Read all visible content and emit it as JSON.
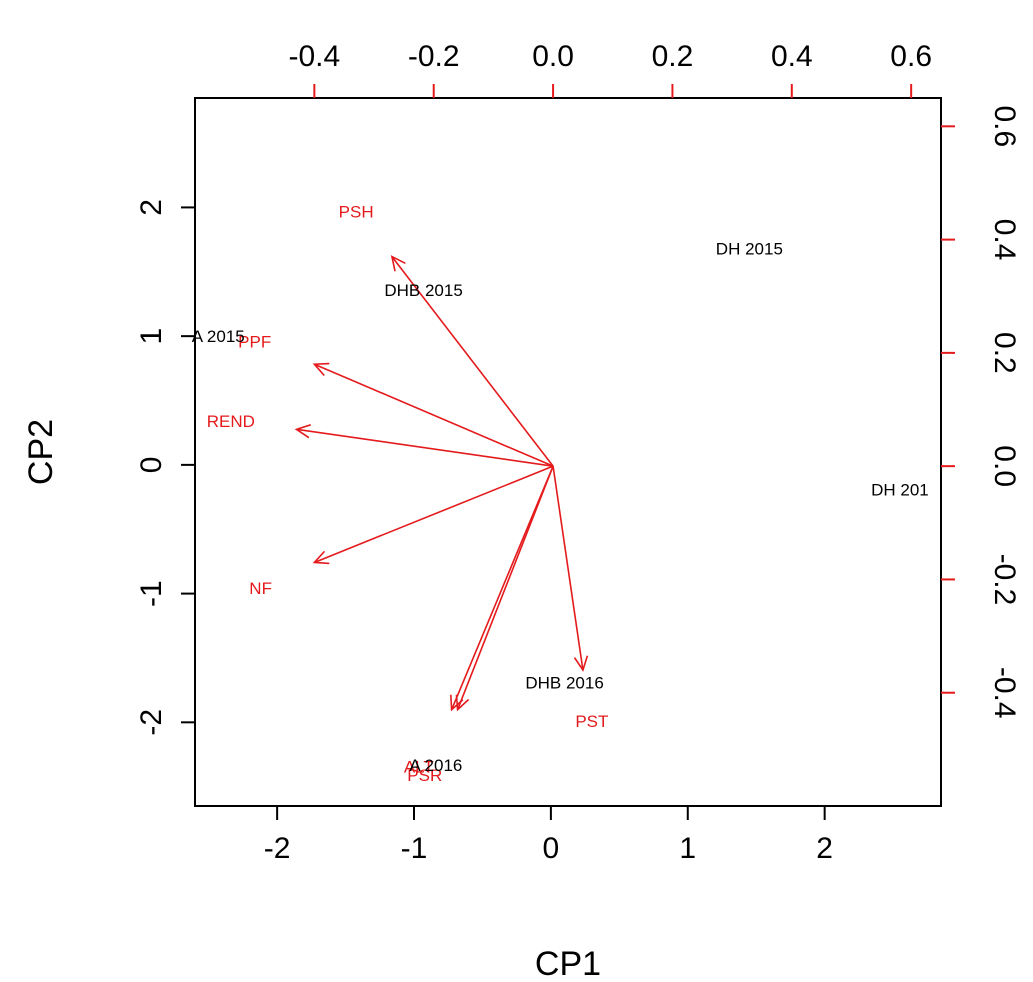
{
  "chart_data": {
    "type": "scatter",
    "xlabel": "CP1",
    "ylabel": "CP2",
    "xlim": [
      -2.6,
      2.85
    ],
    "ylim": [
      -2.65,
      2.85
    ],
    "top_xlim": [
      -0.6,
      0.65
    ],
    "right_ylim": [
      -0.6,
      0.65
    ],
    "primary_axis_color": "#000000",
    "secondary_axis_color": "#e41a1c",
    "bottom_ticks": [
      {
        "value": -2,
        "label": "-2"
      },
      {
        "value": -1,
        "label": "-1"
      },
      {
        "value": 0,
        "label": "0"
      },
      {
        "value": 1,
        "label": "1"
      },
      {
        "value": 2,
        "label": "2"
      }
    ],
    "left_ticks": [
      {
        "value": -2,
        "label": "-2"
      },
      {
        "value": -1,
        "label": "-1"
      },
      {
        "value": 0,
        "label": "0"
      },
      {
        "value": 1,
        "label": "1"
      },
      {
        "value": 2,
        "label": "2"
      }
    ],
    "top_ticks": [
      {
        "value": -0.4,
        "label": "-0.4"
      },
      {
        "value": -0.2,
        "label": "-0.2"
      },
      {
        "value": 0.0,
        "label": "0.0"
      },
      {
        "value": 0.2,
        "label": "0.2"
      },
      {
        "value": 0.4,
        "label": "0.4"
      },
      {
        "value": 0.6,
        "label": "0.6"
      }
    ],
    "right_ticks": [
      {
        "value": -0.4,
        "label": "-0.4"
      },
      {
        "value": -0.2,
        "label": "-0.2"
      },
      {
        "value": 0.0,
        "label": "0.0"
      },
      {
        "value": 0.2,
        "label": "0.2"
      },
      {
        "value": 0.4,
        "label": "0.4"
      },
      {
        "value": 0.6,
        "label": "0.6"
      }
    ],
    "observations": [
      {
        "label": "DH 2015",
        "x": 1.45,
        "y": 1.68
      },
      {
        "label": "DHB 2015",
        "x": -0.93,
        "y": 1.36
      },
      {
        "label": "A 2015",
        "x": -2.43,
        "y": 1.0
      },
      {
        "label": "DH 201",
        "x": 2.55,
        "y": -0.19
      },
      {
        "label": "DHB 2016",
        "x": 0.1,
        "y": -1.69
      },
      {
        "label": "A 2016",
        "x": -0.84,
        "y": -2.33
      }
    ],
    "variables": [
      {
        "label": "PSH",
        "x": -0.27,
        "y": 0.37,
        "label_x": -0.33,
        "label_y": 0.45
      },
      {
        "label": "PPF",
        "x": -0.4,
        "y": 0.18,
        "label_x": -0.5,
        "label_y": 0.22
      },
      {
        "label": "REND",
        "x": -0.43,
        "y": 0.065,
        "label_x": -0.54,
        "label_y": 0.08
      },
      {
        "label": "NF",
        "x": -0.4,
        "y": -0.17,
        "label_x": -0.49,
        "label_y": -0.215
      },
      {
        "label": "PST",
        "x": 0.05,
        "y": -0.36,
        "label_x": 0.065,
        "label_y": -0.45
      },
      {
        "label": "ALT",
        "x": -0.17,
        "y": -0.43,
        "label_x": -0.225,
        "label_y": -0.53
      },
      {
        "label": "PSR",
        "x": -0.16,
        "y": -0.43,
        "label_x": -0.215,
        "label_y": -0.545
      }
    ]
  }
}
